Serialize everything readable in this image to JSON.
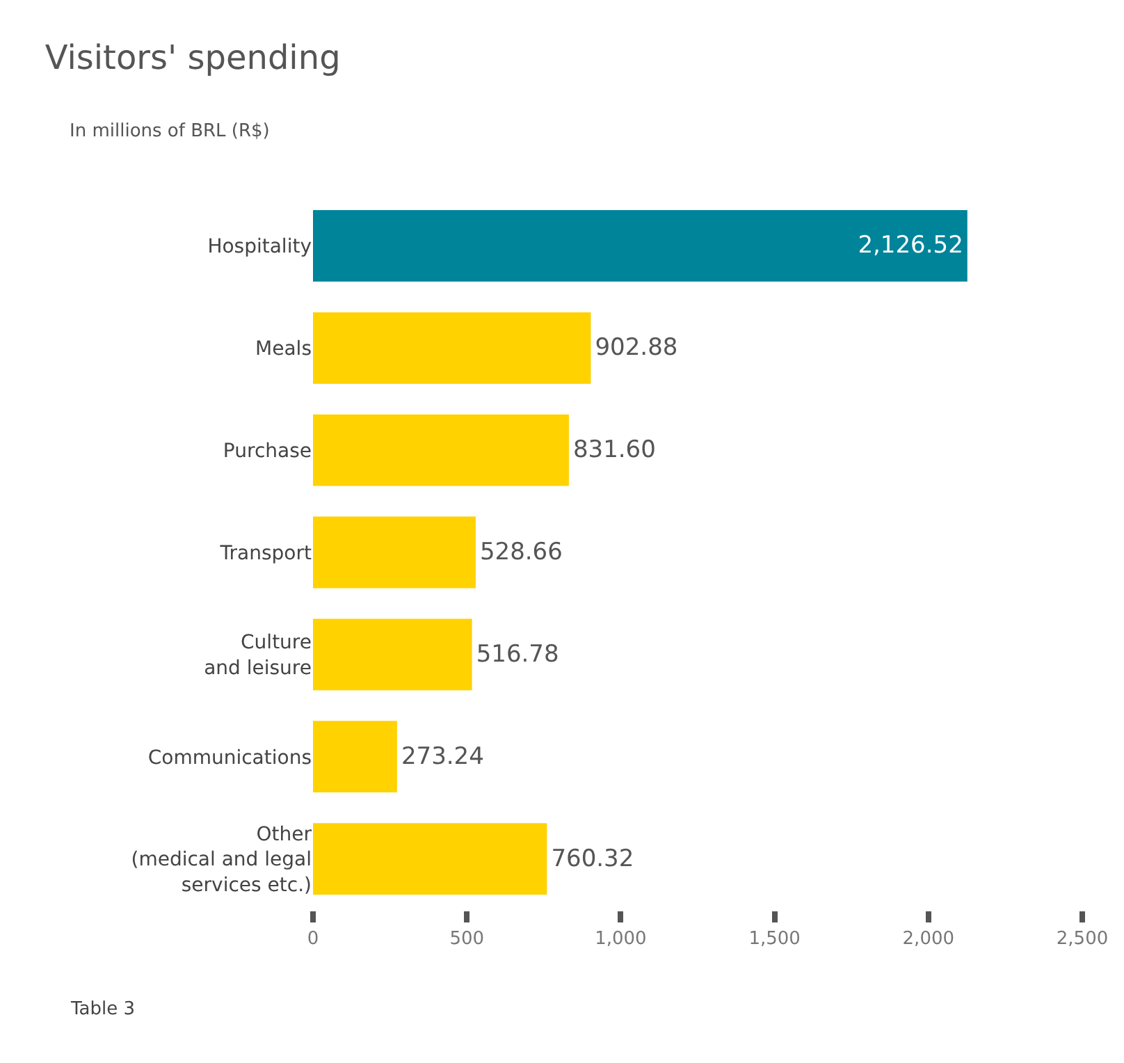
{
  "chart_data": {
    "type": "bar",
    "orientation": "horizontal",
    "title": "Visitors' spending",
    "subtitle": "In millions of BRL (R$)",
    "categories": [
      "Hospitality",
      "Meals",
      "Purchase",
      "Transport",
      "Culture\nand leisure",
      "Communications",
      "Other\n(medical and legal\nservices etc.)"
    ],
    "values": [
      2126.52,
      902.88,
      831.6,
      528.66,
      516.78,
      273.24,
      760.32
    ],
    "value_labels": [
      "2,126.52",
      "902.88",
      "831.60",
      "528.66",
      "516.78",
      "273.24",
      "760.32"
    ],
    "colors": [
      "#00849a",
      "#ffd200",
      "#ffd200",
      "#ffd200",
      "#ffd200",
      "#ffd200",
      "#ffd200"
    ],
    "xlim": [
      0,
      2500
    ],
    "xticks": [
      0,
      500,
      {
        "value": 1000,
        "label": "1,000"
      },
      {
        "value": 1500,
        "label": "1,500"
      },
      {
        "value": 2000,
        "label": "2,000"
      },
      {
        "value": 2500,
        "label": "2,500"
      }
    ],
    "grid": false,
    "legend": false,
    "annotations": [
      "Table 3"
    ]
  }
}
